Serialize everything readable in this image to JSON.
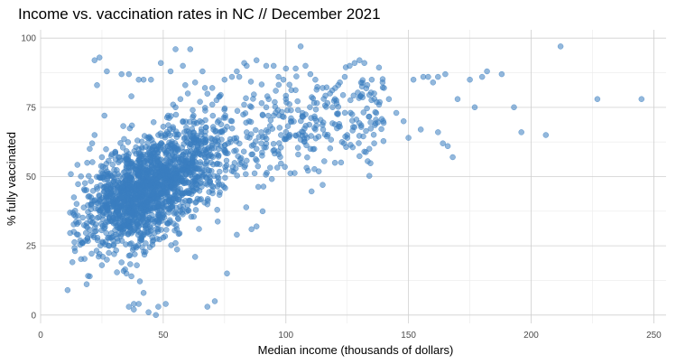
{
  "chart_data": {
    "type": "scatter",
    "title": "Income vs. vaccination rates in NC // December 2021",
    "xlabel": "Median income (thousands of dollars)",
    "ylabel": "% fully vaccinated",
    "xlim": [
      0,
      255
    ],
    "ylim": [
      -3,
      103
    ],
    "x_ticks": [
      0,
      50,
      100,
      150,
      200,
      250
    ],
    "y_ticks": [
      0,
      25,
      50,
      75,
      100
    ],
    "grid": true,
    "legend": "none",
    "point_color": "#3a7dc0",
    "points": [
      [
        12,
        37
      ],
      [
        11,
        9
      ],
      [
        20,
        14
      ],
      [
        18,
        45
      ],
      [
        19,
        55
      ],
      [
        20,
        60
      ],
      [
        21,
        62
      ],
      [
        22,
        65
      ],
      [
        22,
        92
      ],
      [
        24,
        93
      ],
      [
        23,
        83
      ],
      [
        27,
        88
      ],
      [
        26,
        72
      ],
      [
        25,
        57
      ],
      [
        24,
        22
      ],
      [
        25,
        18
      ],
      [
        27,
        20
      ],
      [
        28,
        25
      ],
      [
        29,
        28
      ],
      [
        30,
        22
      ],
      [
        33,
        19
      ],
      [
        35,
        15
      ],
      [
        37,
        14
      ],
      [
        36,
        3
      ],
      [
        38,
        2
      ],
      [
        38,
        4
      ],
      [
        40,
        4
      ],
      [
        42,
        8
      ],
      [
        44,
        1
      ],
      [
        47,
        0
      ],
      [
        48,
        3
      ],
      [
        51,
        4
      ],
      [
        46,
        27
      ],
      [
        50,
        28
      ],
      [
        55,
        26
      ],
      [
        63,
        21
      ],
      [
        68,
        3
      ],
      [
        71,
        5
      ],
      [
        76,
        15
      ],
      [
        80,
        29
      ],
      [
        86,
        31
      ],
      [
        88,
        32
      ],
      [
        33,
        87
      ],
      [
        36,
        87
      ],
      [
        37,
        79
      ],
      [
        42,
        85
      ],
      [
        40,
        85
      ],
      [
        45,
        85
      ],
      [
        49,
        91
      ],
      [
        53,
        88
      ],
      [
        55,
        96
      ],
      [
        61,
        96
      ],
      [
        58,
        90
      ],
      [
        66,
        88
      ],
      [
        70,
        82
      ],
      [
        75,
        85
      ],
      [
        78,
        86
      ],
      [
        81,
        86
      ],
      [
        84,
        90
      ],
      [
        80,
        88
      ],
      [
        83,
        91
      ],
      [
        88,
        92
      ],
      [
        92,
        90
      ],
      [
        95,
        90
      ],
      [
        97,
        86
      ],
      [
        99,
        85
      ],
      [
        100,
        89
      ],
      [
        104,
        89
      ],
      [
        106,
        97
      ],
      [
        108,
        90
      ],
      [
        110,
        87
      ],
      [
        112,
        85
      ],
      [
        115,
        82
      ],
      [
        118,
        80
      ],
      [
        120,
        78
      ],
      [
        122,
        84
      ],
      [
        124,
        86
      ],
      [
        126,
        90
      ],
      [
        128,
        91
      ],
      [
        130,
        92
      ],
      [
        132,
        91
      ],
      [
        135,
        85
      ],
      [
        136,
        80
      ],
      [
        138,
        76
      ],
      [
        140,
        82
      ],
      [
        142,
        78
      ],
      [
        145,
        73
      ],
      [
        148,
        70
      ],
      [
        150,
        64
      ],
      [
        152,
        85
      ],
      [
        155,
        67
      ],
      [
        156,
        86
      ],
      [
        158,
        86
      ],
      [
        160,
        84
      ],
      [
        162,
        86
      ],
      [
        165,
        87
      ],
      [
        162,
        66
      ],
      [
        164,
        62
      ],
      [
        166,
        61
      ],
      [
        168,
        57
      ],
      [
        132,
        59
      ],
      [
        134,
        60
      ],
      [
        136,
        62
      ],
      [
        122,
        68
      ],
      [
        115,
        47
      ],
      [
        120,
        55
      ],
      [
        125,
        65
      ],
      [
        110,
        60
      ],
      [
        105,
        58
      ],
      [
        112,
        67
      ],
      [
        170,
        78
      ],
      [
        175,
        85
      ],
      [
        177,
        75
      ],
      [
        180,
        86
      ],
      [
        182,
        88
      ],
      [
        188,
        87
      ],
      [
        193,
        75
      ],
      [
        196,
        66
      ],
      [
        206,
        65
      ],
      [
        212,
        97
      ],
      [
        227,
        78
      ],
      [
        245,
        78
      ],
      [
        100,
        78
      ],
      [
        95,
        72
      ],
      [
        92,
        75
      ],
      [
        85,
        70
      ],
      [
        90,
        66
      ],
      [
        88,
        60
      ],
      [
        98,
        65
      ],
      [
        102,
        70
      ],
      [
        60,
        48
      ],
      [
        58,
        52
      ],
      [
        62,
        55
      ],
      [
        65,
        58
      ],
      [
        68,
        60
      ],
      [
        70,
        62
      ],
      [
        72,
        64
      ],
      [
        74,
        66
      ],
      [
        76,
        68
      ],
      [
        78,
        70
      ],
      [
        66,
        50
      ],
      [
        70,
        45
      ],
      [
        74,
        47
      ],
      [
        78,
        52
      ],
      [
        82,
        55
      ],
      [
        86,
        58
      ],
      [
        90,
        62
      ],
      [
        64,
        42
      ],
      [
        68,
        40
      ],
      [
        72,
        38
      ],
      [
        56,
        35
      ],
      [
        52,
        33
      ],
      [
        48,
        31
      ],
      [
        44,
        30
      ],
      [
        40,
        32
      ],
      [
        36,
        34
      ],
      [
        32,
        36
      ],
      [
        30,
        40
      ],
      [
        28,
        43
      ],
      [
        26,
        46
      ],
      [
        58,
        70
      ],
      [
        55,
        75
      ],
      [
        52,
        72
      ],
      [
        50,
        68
      ],
      [
        48,
        65
      ],
      [
        46,
        62
      ],
      [
        44,
        60
      ],
      [
        42,
        58
      ],
      [
        40,
        56
      ],
      [
        38,
        54
      ],
      [
        60,
        80
      ],
      [
        57,
        78
      ],
      [
        54,
        76
      ],
      [
        65,
        77
      ],
      [
        62,
        74
      ],
      [
        70,
        76
      ],
      [
        73,
        79
      ],
      [
        67,
        82
      ],
      [
        63,
        84
      ],
      [
        59,
        83
      ]
    ]
  }
}
